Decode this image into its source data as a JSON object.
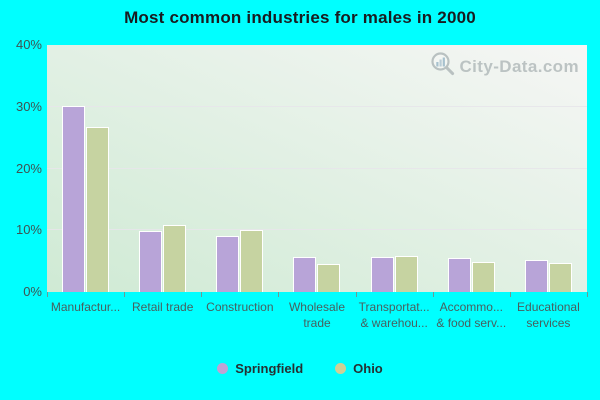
{
  "watermark": "City-Data.com",
  "legend": [
    {
      "label": "Springfield",
      "marker_color": "#c0a2d4"
    },
    {
      "label": "Ohio",
      "marker_color": "#cfd096"
    }
  ],
  "colors": {
    "page_background": "#00ffff",
    "springfield_bar": "#b8a4d8",
    "ohio_bar": "#c6d3a1",
    "bar_border": "#ffffff",
    "plot_gradient_bottom_left": "#cfead4",
    "plot_gradient_top_right": "#f6f6f5",
    "gridline": "#e7e5ea",
    "axis_label_text": "#3e5352",
    "title_text": "#181c20",
    "watermark_text": "#aab3b4"
  },
  "chart_data": {
    "type": "bar",
    "title": "Most common industries for males in 2000",
    "categories": [
      "Manufactur...",
      "Retail trade",
      "Construction",
      "Wholesale trade",
      "Transportat... & warehou...",
      "Accommo... & food serv...",
      "Educational services"
    ],
    "category_lines": [
      [
        "Manufactur..."
      ],
      [
        "Retail trade"
      ],
      [
        "Construction"
      ],
      [
        "Wholesale",
        "trade"
      ],
      [
        "Transportat...",
        "& warehou..."
      ],
      [
        "Accommo...",
        "& food serv..."
      ],
      [
        "Educational",
        "services"
      ]
    ],
    "series": [
      {
        "name": "Springfield",
        "color": "#b8a4d8",
        "values": [
          30.1,
          9.9,
          9.1,
          5.6,
          5.7,
          5.5,
          5.2
        ]
      },
      {
        "name": "Ohio",
        "color": "#c6d3a1",
        "values": [
          26.7,
          10.8,
          10.0,
          4.6,
          5.9,
          4.8,
          4.7
        ]
      }
    ],
    "xlabel": "",
    "ylabel": "",
    "ylim": [
      0,
      40
    ],
    "yticks": [
      {
        "value": 0,
        "label": "0%"
      },
      {
        "value": 10,
        "label": "10%"
      },
      {
        "value": 20,
        "label": "20%"
      },
      {
        "value": 30,
        "label": "30%"
      },
      {
        "value": 40,
        "label": "40%"
      }
    ],
    "grid_values": [
      10,
      20,
      30
    ],
    "grid": "horizontal",
    "legend_position": "bottom"
  }
}
